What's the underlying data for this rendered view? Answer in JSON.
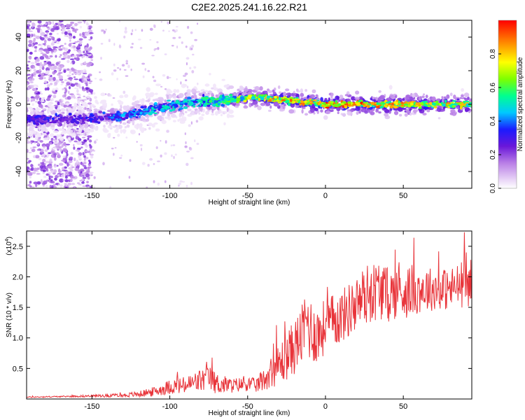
{
  "title": "C2E2.2025.241.16.22.R21",
  "chart_data": [
    {
      "type": "heatmap",
      "name": "spectrogram",
      "xlabel": "Height of straight line (km)",
      "ylabel": "Frequency (Hz)",
      "xlim": [
        -192,
        94
      ],
      "ylim": [
        -50,
        50
      ],
      "xticks": [
        -150,
        -100,
        -50,
        0,
        50
      ],
      "yticks": [
        -40,
        -20,
        0,
        20,
        40
      ],
      "ridge": {
        "x": [
          -192,
          -175,
          -160,
          -150,
          -140,
          -130,
          -120,
          -110,
          -100,
          -90,
          -80,
          -70,
          -60,
          -50,
          -40,
          -30,
          -20,
          -10,
          0,
          10,
          20,
          30,
          40,
          50,
          60,
          70,
          80,
          94
        ],
        "y": [
          -9,
          -9,
          -9,
          -8,
          -7,
          -7,
          -5,
          -3,
          -1,
          1,
          2,
          2,
          3,
          4,
          4,
          3,
          2,
          1,
          0,
          0,
          0,
          0,
          0,
          0,
          0,
          0,
          0,
          0
        ],
        "peak_amplitude": [
          0.35,
          0.35,
          0.3,
          0.35,
          0.4,
          0.45,
          0.45,
          0.5,
          0.5,
          0.5,
          0.55,
          0.6,
          0.65,
          0.75,
          0.85,
          0.9,
          0.9,
          0.9,
          1.0,
          0.95,
          0.95,
          0.95,
          0.9,
          0.9,
          0.85,
          0.85,
          0.85,
          0.8
        ]
      },
      "colorbar": {
        "label": "Normalized spectral amplitude",
        "range": [
          0,
          1
        ],
        "ticks": [
          "0.0",
          "0.2",
          "0.4",
          "0.6",
          "0.8"
        ],
        "tick_values": [
          0,
          0.2,
          0.4,
          0.6,
          0.8
        ]
      }
    },
    {
      "type": "line",
      "name": "snr",
      "xlabel": "Height of straight line (km)",
      "ylabel": "SNR (10 * v/v)",
      "scale_label": "(x10",
      "scale_exponent": "4",
      "xlim": [
        -192,
        94
      ],
      "ylim": [
        0,
        2.75
      ],
      "xticks": [
        -150,
        -100,
        -50,
        0,
        50
      ],
      "yticks": [
        0.5,
        1.0,
        1.5,
        2.0,
        2.5
      ],
      "series": [
        {
          "name": "SNR",
          "color": "#e8343a",
          "x": [
            -192,
            -170,
            -150,
            -130,
            -120,
            -110,
            -100,
            -90,
            -80,
            -75,
            -70,
            -60,
            -50,
            -45,
            -40,
            -35,
            -30,
            -25,
            -20,
            -15,
            -12,
            -10,
            -5,
            0,
            10,
            20,
            25,
            30,
            35,
            40,
            45,
            50,
            60,
            70,
            80,
            90,
            94
          ],
          "y": [
            0.03,
            0.04,
            0.05,
            0.06,
            0.08,
            0.12,
            0.2,
            0.22,
            0.3,
            0.35,
            0.25,
            0.22,
            0.25,
            0.22,
            0.3,
            0.45,
            0.55,
            0.7,
            0.85,
            1.05,
            1.3,
            1.15,
            1.05,
            1.2,
            1.35,
            1.55,
            1.7,
            1.75,
            1.8,
            1.7,
            1.75,
            1.75,
            1.8,
            1.8,
            1.8,
            1.9,
            1.9
          ],
          "noise": [
            0.01,
            0.01,
            0.02,
            0.03,
            0.05,
            0.08,
            0.12,
            0.15,
            0.2,
            0.2,
            0.18,
            0.12,
            0.12,
            0.12,
            0.18,
            0.25,
            0.35,
            0.4,
            0.45,
            0.5,
            0.6,
            0.55,
            0.5,
            0.45,
            0.45,
            0.45,
            0.5,
            0.5,
            0.5,
            0.45,
            0.45,
            0.45,
            0.4,
            0.35,
            0.35,
            0.4,
            0.4
          ]
        }
      ]
    }
  ]
}
